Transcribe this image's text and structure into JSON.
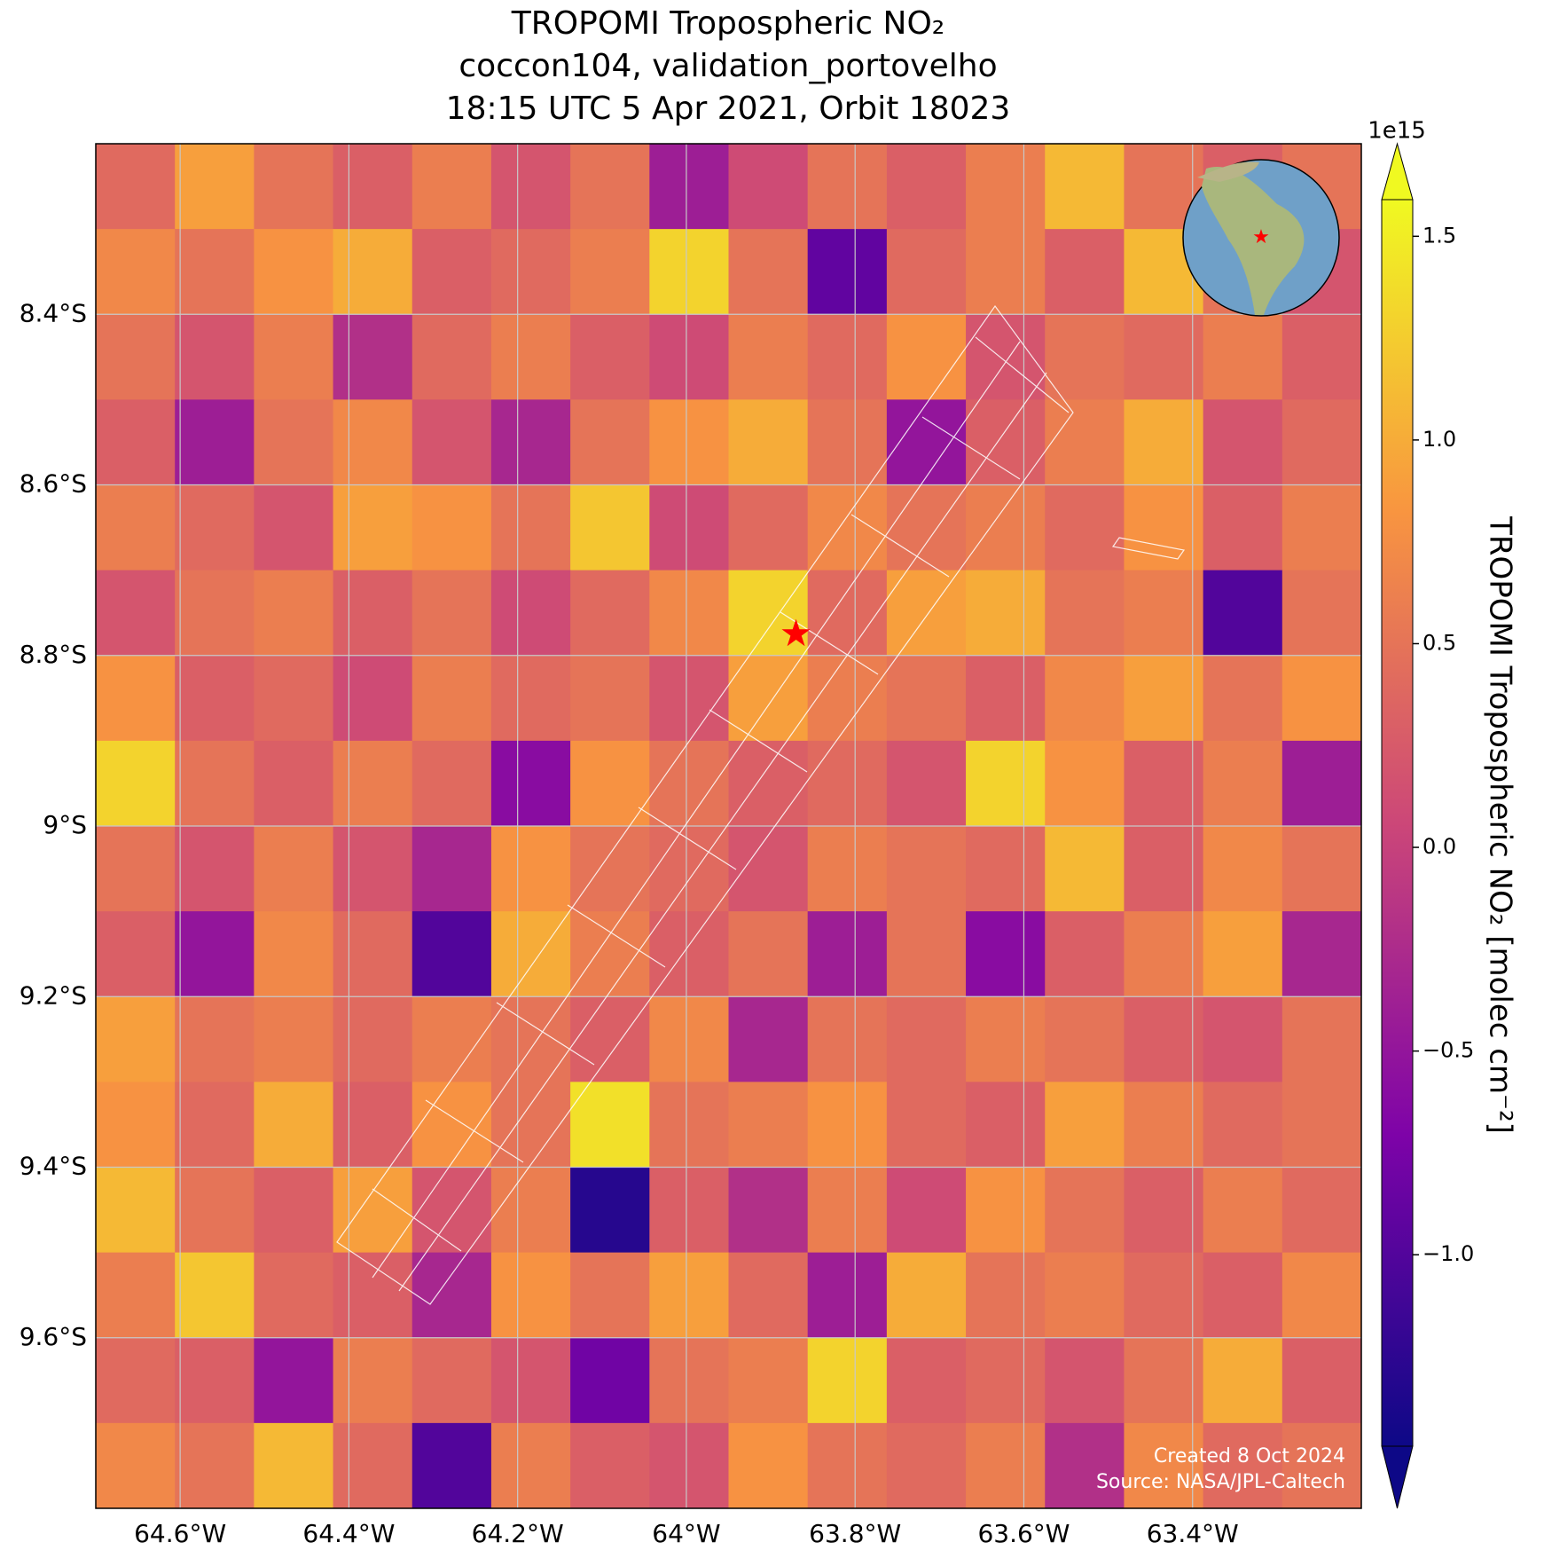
{
  "chart_data": {
    "type": "heatmap",
    "title": [
      "TROPOMI Tropospheric NO₂",
      "coccon104, validation_portovelho",
      "18:15 UTC 5 Apr 2021, Orbit 18023"
    ],
    "colormap": "plasma",
    "colorbar_label": "TROPOMI Tropospheric NO₂ [molec cm⁻²]",
    "colorbar_offset": "1e15",
    "clim": [
      -1.47,
      1.59
    ],
    "cticks": [
      {
        "value": -1.0,
        "label": "−1.0"
      },
      {
        "value": -0.5,
        "label": "−0.5"
      },
      {
        "value": 0,
        "label": "0.0"
      },
      0.5,
      {
        "value": 1,
        "label": "1.0"
      },
      1.5
    ],
    "xlim": [
      -64.7,
      -63.2
    ],
    "ylim": [
      -9.8,
      -8.2
    ],
    "xticks": [
      {
        "value": -64.6,
        "label": "64.6°W"
      },
      {
        "value": -64.4,
        "label": "64.4°W"
      },
      {
        "value": -64.2,
        "label": "64.2°W"
      },
      {
        "value": -64,
        "label": "64°W"
      },
      {
        "value": -63.8,
        "label": "63.8°W"
      },
      {
        "value": -63.6,
        "label": "63.6°W"
      },
      {
        "value": -63.4,
        "label": "63.4°W"
      }
    ],
    "yticks": [
      {
        "value": -8.4,
        "label": "8.4°S"
      },
      {
        "value": -8.6,
        "label": "8.6°S"
      },
      {
        "value": -8.8,
        "label": "8.8°S"
      },
      {
        "value": -9,
        "label": "9°S"
      },
      {
        "value": -9.2,
        "label": "9.2°S"
      },
      {
        "value": -9.4,
        "label": "9.4°S"
      },
      {
        "value": -9.6,
        "label": "9.6°S"
      }
    ],
    "grid": true,
    "site": {
      "lon": -63.87,
      "lat": -8.775,
      "color": "#ff0000"
    },
    "annotations": [
      "Created 8 Oct 2024",
      "Source: NASA/JPL-Caltech"
    ],
    "values": [
      [
        0.4,
        0.9,
        0.5,
        0.3,
        0.6,
        0.2,
        0.5,
        -0.4,
        0.1,
        0.5,
        0.3,
        0.6,
        1.1,
        0.5,
        0.3,
        0.5
      ],
      [
        0.7,
        0.5,
        0.8,
        1.0,
        0.3,
        0.4,
        0.6,
        1.3,
        0.5,
        -0.9,
        0.4,
        0.6,
        0.3,
        1.1,
        0.5,
        0.2
      ],
      [
        0.5,
        0.2,
        0.6,
        -0.2,
        0.4,
        0.6,
        0.3,
        0.1,
        0.6,
        0.4,
        0.8,
        0.2,
        0.5,
        0.4,
        0.6,
        0.3
      ],
      [
        0.3,
        -0.4,
        0.5,
        0.7,
        0.2,
        -0.3,
        0.5,
        0.8,
        1.0,
        0.5,
        -0.5,
        0.3,
        0.6,
        1.0,
        0.2,
        0.4
      ],
      [
        0.6,
        0.4,
        0.2,
        0.9,
        0.8,
        0.5,
        1.2,
        0.1,
        0.4,
        0.7,
        0.5,
        0.6,
        0.4,
        0.8,
        0.3,
        0.6
      ],
      [
        0.2,
        0.5,
        0.6,
        0.3,
        0.5,
        0.1,
        0.4,
        0.7,
        1.3,
        0.4,
        0.9,
        1.0,
        0.5,
        0.6,
        -1.0,
        0.5
      ],
      [
        0.8,
        0.3,
        0.4,
        0.1,
        0.6,
        0.4,
        0.5,
        0.2,
        0.9,
        0.6,
        0.5,
        0.3,
        0.7,
        0.9,
        0.5,
        0.8
      ],
      [
        1.3,
        0.5,
        0.3,
        0.6,
        0.4,
        -0.6,
        0.8,
        0.5,
        0.3,
        0.4,
        0.2,
        1.3,
        0.8,
        0.3,
        0.6,
        -0.4
      ],
      [
        0.5,
        0.2,
        0.6,
        0.2,
        -0.3,
        0.8,
        0.5,
        0.4,
        0.2,
        0.6,
        0.5,
        0.4,
        1.1,
        0.3,
        0.7,
        0.5
      ],
      [
        0.3,
        -0.5,
        0.7,
        0.4,
        -1.0,
        1.0,
        0.6,
        0.3,
        0.5,
        -0.4,
        0.5,
        -0.6,
        0.3,
        0.6,
        0.9,
        -0.3
      ],
      [
        0.9,
        0.5,
        0.6,
        0.4,
        0.6,
        0.5,
        0.3,
        0.7,
        -0.3,
        0.5,
        0.4,
        0.6,
        0.5,
        0.3,
        0.2,
        0.5
      ],
      [
        0.8,
        0.4,
        1.0,
        0.3,
        0.8,
        0.5,
        1.4,
        0.5,
        0.6,
        0.8,
        0.4,
        0.3,
        0.9,
        0.6,
        0.4,
        0.5
      ],
      [
        1.1,
        0.5,
        0.3,
        0.9,
        0.2,
        0.6,
        -1.3,
        0.3,
        -0.2,
        0.6,
        0.1,
        0.8,
        0.5,
        0.3,
        0.6,
        0.4
      ],
      [
        0.6,
        1.2,
        0.4,
        0.3,
        -0.3,
        0.8,
        0.5,
        0.9,
        0.4,
        -0.4,
        1.0,
        0.5,
        0.6,
        0.4,
        0.3,
        0.7
      ],
      [
        0.4,
        0.3,
        -0.5,
        0.6,
        0.4,
        0.2,
        -0.8,
        0.5,
        0.6,
        1.3,
        0.3,
        0.4,
        0.2,
        0.5,
        1.0,
        0.3
      ],
      [
        0.7,
        0.5,
        1.1,
        0.4,
        -1.0,
        0.6,
        0.3,
        0.2,
        0.8,
        0.5,
        0.4,
        0.6,
        -0.2,
        0.7,
        0.4,
        0.5
      ]
    ]
  }
}
